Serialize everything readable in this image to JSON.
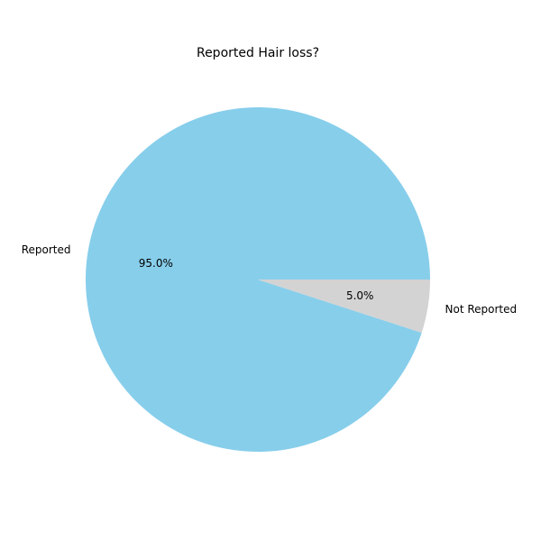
{
  "chart_data": {
    "type": "pie",
    "title": "Reported Hair loss?",
    "categories": [
      "Reported",
      "Not Reported"
    ],
    "values": [
      95.0,
      5.0
    ],
    "percent_labels": [
      "95.0%",
      "5.0%"
    ],
    "colors": [
      "#87ceeb",
      "#d3d3d3"
    ],
    "start_angle_deg": 0,
    "direction": "counterclockwise",
    "legend": "none"
  }
}
